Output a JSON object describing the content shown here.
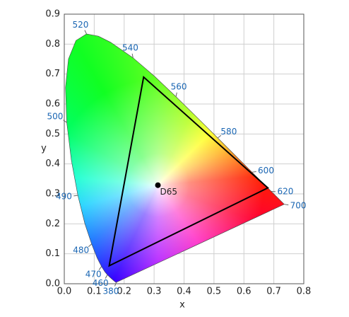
{
  "chart_data": {
    "type": "scatter",
    "xlabel": "x",
    "ylabel": "y",
    "xlim": [
      0,
      0.8
    ],
    "ylim": [
      0,
      0.9
    ],
    "xticks": [
      {
        "value": 0,
        "label": "0.0"
      },
      0.1,
      0.2,
      0.3,
      0.4,
      0.5,
      0.6,
      0.7,
      0.8
    ],
    "yticks": [
      {
        "value": 0,
        "label": "0.0"
      },
      0.1,
      0.2,
      0.3,
      0.4,
      0.5,
      0.6,
      0.7,
      0.8,
      0.9
    ],
    "grid": true,
    "locus": {
      "wavelengths": [
        380,
        null,
        null,
        null,
        460,
        null,
        470,
        null,
        480,
        null,
        490,
        null,
        500,
        null,
        null,
        null,
        520,
        null,
        null,
        540,
        null,
        560,
        null,
        580,
        null,
        600,
        null,
        620,
        null,
        700
      ],
      "x": [
        0.1741,
        0.1714,
        0.1644,
        0.1566,
        0.144,
        0.1355,
        0.1241,
        0.1096,
        0.0913,
        0.0687,
        0.0454,
        0.0235,
        0.0082,
        0.0039,
        0.0139,
        0.0389,
        0.0743,
        0.1142,
        0.1547,
        0.2296,
        0.3016,
        0.3731,
        0.4441,
        0.5125,
        0.5752,
        0.627,
        0.6658,
        0.6915,
        0.719,
        0.7347
      ],
      "y": [
        0.005,
        0.0051,
        0.0109,
        0.0177,
        0.0297,
        0.0399,
        0.0578,
        0.0868,
        0.1327,
        0.2007,
        0.295,
        0.4127,
        0.5384,
        0.6548,
        0.7502,
        0.812,
        0.8338,
        0.8262,
        0.8059,
        0.7543,
        0.6923,
        0.6245,
        0.5547,
        0.4866,
        0.4242,
        0.3725,
        0.334,
        0.3083,
        0.2809,
        0.2653
      ]
    },
    "gamut": {
      "x": [
        0.68,
        0.265,
        0.15
      ],
      "y": [
        0.32,
        0.69,
        0.06
      ],
      "color": "#000000"
    },
    "white_point": {
      "label": "D65",
      "x": 0.3127,
      "y": 0.329,
      "color": "#000000"
    }
  }
}
